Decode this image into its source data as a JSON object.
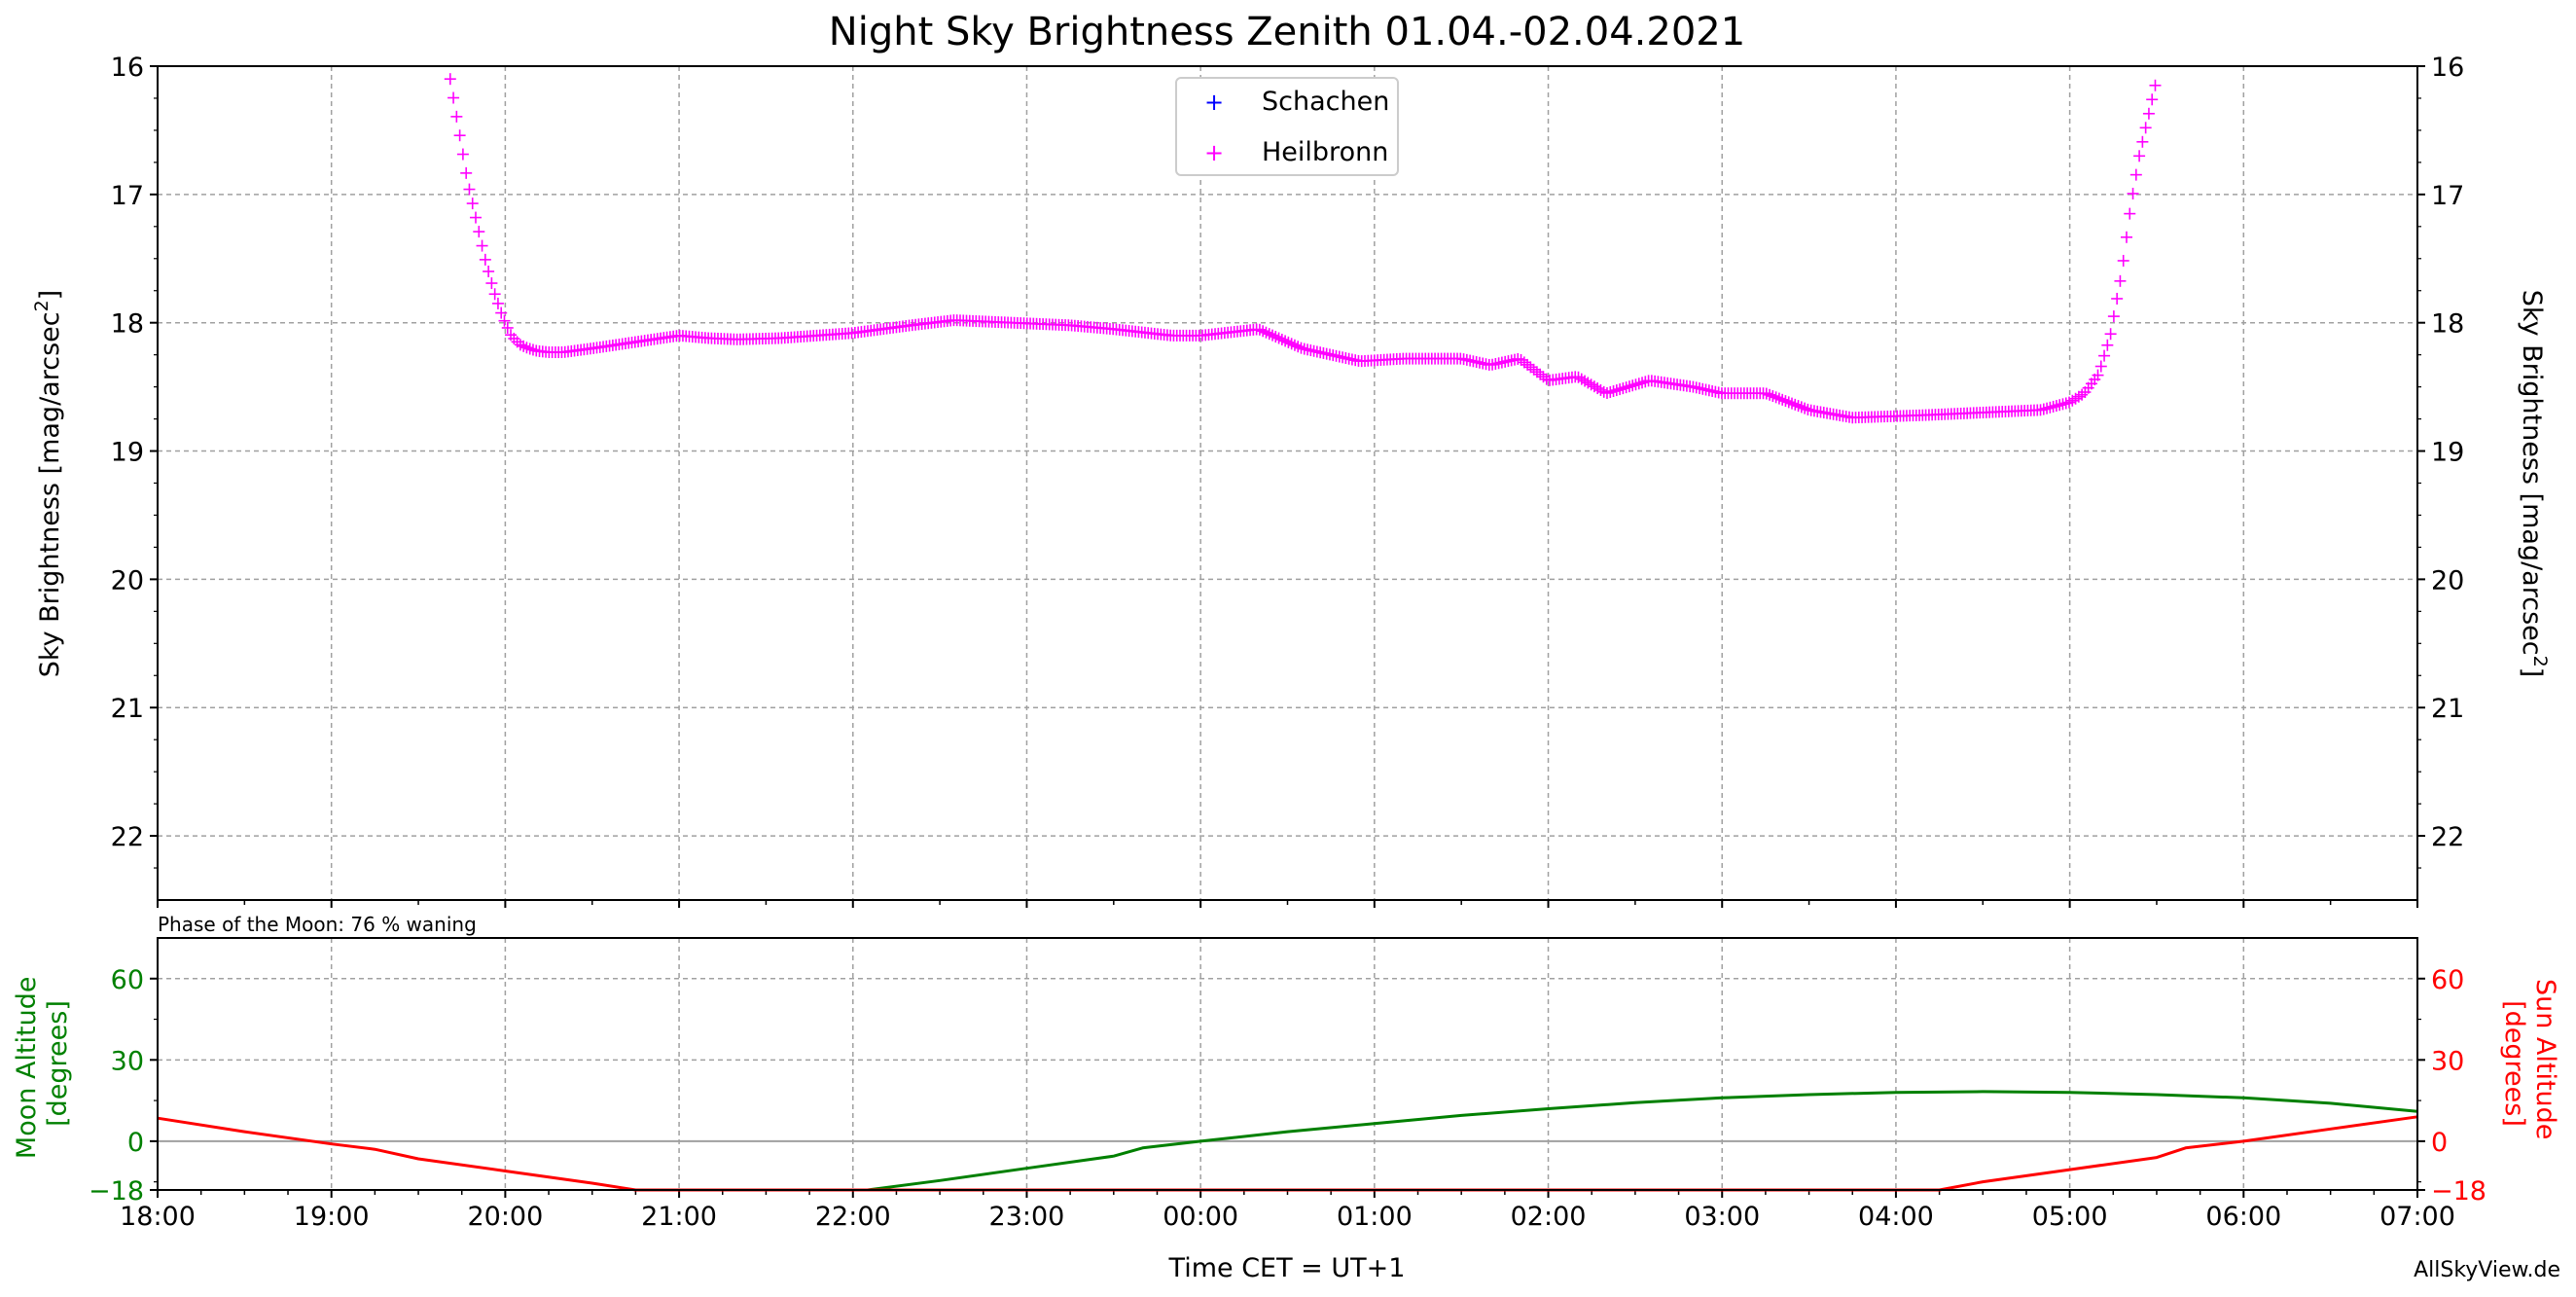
{
  "chart_data": [
    {
      "type": "scatter",
      "title": "Night Sky Brightness Zenith 01.04.-02.04.2021",
      "ylabel": "Sky Brightness [mag/arcsec",
      "ylabel_right": "Sky Brightness [mag/arcsec",
      "ylabel_sup": "2",
      "ylim": [
        22.5,
        16
      ],
      "y_inverted": true,
      "yticks": [
        16,
        17,
        18,
        19,
        20,
        21,
        22
      ],
      "grid": true,
      "legend_position": "top-center",
      "series": [
        {
          "name": "Schachen",
          "color": "#0000ff",
          "x": [],
          "y": []
        },
        {
          "name": "Heilbronn",
          "color": "#ff00ff",
          "x": [
            "19:41",
            "19:44",
            "19:47",
            "19:50",
            "19:53",
            "19:56",
            "19:59",
            "20:02",
            "20:05",
            "20:08",
            "20:11",
            "20:15",
            "20:20",
            "20:30",
            "20:45",
            "21:00",
            "21:10",
            "21:20",
            "21:35",
            "22:00",
            "22:20",
            "22:35",
            "22:55",
            "23:15",
            "23:30",
            "23:50",
            "24:00",
            "24:20",
            "24:35",
            "24:45",
            "24:55",
            "25:10",
            "25:30",
            "25:40",
            "25:50",
            "26:00",
            "26:10",
            "26:20",
            "26:35",
            "26:50",
            "27:00",
            "27:15",
            "27:30",
            "27:45",
            "28:10",
            "28:30",
            "28:50",
            "29:00",
            "29:05",
            "29:10",
            "29:14",
            "29:18",
            "29:21",
            "29:24",
            "29:27",
            "29:30"
          ],
          "y": [
            16.1,
            16.5,
            16.9,
            17.2,
            17.5,
            17.75,
            17.95,
            18.1,
            18.17,
            18.2,
            18.22,
            18.23,
            18.23,
            18.2,
            18.15,
            18.1,
            18.12,
            18.13,
            18.12,
            18.08,
            18.02,
            17.98,
            18.0,
            18.02,
            18.05,
            18.1,
            18.1,
            18.05,
            18.2,
            18.25,
            18.3,
            18.28,
            18.28,
            18.33,
            18.28,
            18.45,
            18.42,
            18.55,
            18.45,
            18.5,
            18.55,
            18.55,
            18.68,
            18.74,
            18.72,
            18.7,
            18.68,
            18.62,
            18.55,
            18.4,
            18.1,
            17.6,
            17.1,
            16.7,
            16.4,
            16.1
          ]
        }
      ]
    },
    {
      "type": "line",
      "annotation": "Phase of the Moon: 76 % waning",
      "xlabel": "Time CET = UT+1",
      "ylabel": "Moon Altitude\n[degrees]",
      "ylabel_right": "Sun Altitude\n[degrees]",
      "ylim": [
        -18,
        75
      ],
      "yticks": [
        -18,
        0,
        30,
        60
      ],
      "ytick_labels": [
        "−18",
        "0",
        "30",
        "60"
      ],
      "xlim": [
        "18:00",
        "07:00"
      ],
      "xticks": [
        "18:00",
        "19:00",
        "20:00",
        "21:00",
        "22:00",
        "23:00",
        "00:00",
        "01:00",
        "02:00",
        "03:00",
        "04:00",
        "05:00",
        "06:00",
        "07:00"
      ],
      "grid": true,
      "series": [
        {
          "name": "Moon",
          "color": "#008000",
          "x": [
            "22:05",
            "22:30",
            "23:00",
            "23:30",
            "23:40",
            "24:00",
            "24:30",
            "25:00",
            "25:30",
            "26:00",
            "26:30",
            "27:00",
            "27:30",
            "28:00",
            "28:30",
            "29:00",
            "29:30",
            "30:00",
            "30:30",
            "31:00"
          ],
          "y": [
            -18,
            -14.5,
            -10,
            -5.5,
            -2.5,
            0,
            3.5,
            6.5,
            9.5,
            12,
            14.2,
            16,
            17.2,
            18,
            18.3,
            18,
            17.2,
            16,
            14,
            11
          ]
        },
        {
          "name": "Sun",
          "color": "#ff0000",
          "x": [
            "18:00",
            "18:30",
            "19:00",
            "19:15",
            "19:30",
            "20:00",
            "20:30",
            "20:45",
            "28:15",
            "28:30",
            "29:00",
            "29:30",
            "29:40",
            "30:00",
            "30:30",
            "31:00"
          ],
          "y": [
            8.5,
            3.5,
            -1,
            -3,
            -6.5,
            -11,
            -15.5,
            -18,
            -18,
            -15,
            -10.5,
            -6,
            -2.5,
            0,
            4.5,
            9
          ]
        }
      ]
    }
  ],
  "credit": "AllSkyView.de"
}
